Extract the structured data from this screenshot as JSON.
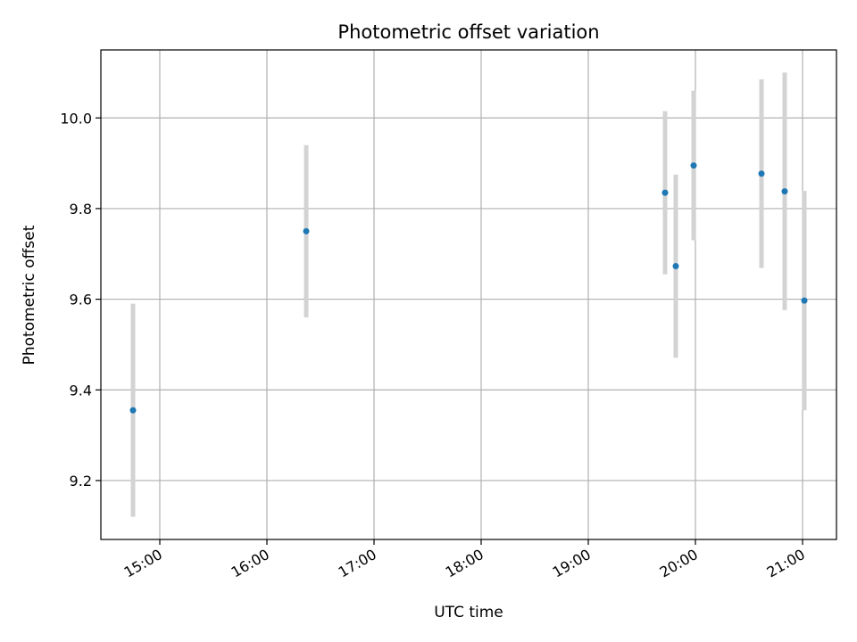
{
  "chart_data": {
    "type": "scatter",
    "title": "Photometric offset variation",
    "xlabel": "UTC time",
    "ylabel": "Photometric offset",
    "xlim": [
      "14:27",
      "21:19"
    ],
    "ylim": [
      9.07,
      10.15
    ],
    "x_ticks": [
      "15:00",
      "16:00",
      "17:00",
      "18:00",
      "19:00",
      "20:00",
      "21:00"
    ],
    "y_ticks": [
      9.2,
      9.4,
      9.6,
      9.8,
      10.0
    ],
    "y_tick_labels": [
      "9.2",
      "9.4",
      "9.6",
      "9.8",
      "10.0"
    ],
    "grid": true,
    "series": [
      {
        "marker_color": "#1f77b4",
        "errorbar_color": "#d3d3d3",
        "points": [
          {
            "x": "14:45",
            "y": 9.355,
            "err": 0.235
          },
          {
            "x": "16:22",
            "y": 9.75,
            "err": 0.19
          },
          {
            "x": "19:43",
            "y": 9.835,
            "err": 0.18
          },
          {
            "x": "19:49",
            "y": 9.673,
            "err": 0.202
          },
          {
            "x": "19:59",
            "y": 9.895,
            "err": 0.165
          },
          {
            "x": "20:37",
            "y": 9.877,
            "err": 0.208
          },
          {
            "x": "20:50",
            "y": 9.838,
            "err": 0.262
          },
          {
            "x": "21:01",
            "y": 9.597,
            "err": 0.242
          }
        ]
      }
    ]
  }
}
